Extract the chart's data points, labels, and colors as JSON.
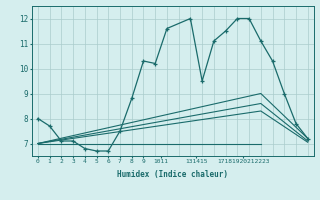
{
  "xlabel": "Humidex (Indice chaleur)",
  "bg_color": "#d5eeee",
  "grid_color": "#aacccc",
  "line_color": "#1a6b6b",
  "xlim": [
    -0.5,
    23.5
  ],
  "ylim": [
    6.5,
    12.5
  ],
  "y_ticks": [
    7,
    8,
    9,
    10,
    11,
    12
  ],
  "main_x": [
    0,
    1,
    2,
    3,
    4,
    5,
    6,
    7,
    8,
    9,
    10,
    11,
    13,
    14,
    15,
    16,
    17,
    18,
    19,
    20,
    21,
    22,
    23
  ],
  "main_y": [
    8.0,
    7.7,
    7.1,
    7.1,
    6.8,
    6.7,
    6.7,
    7.5,
    8.8,
    10.3,
    10.2,
    11.6,
    12.0,
    9.5,
    11.1,
    11.5,
    12.0,
    12.0,
    11.1,
    10.3,
    9.0,
    7.8,
    7.2
  ],
  "line2_x": [
    0,
    19,
    23
  ],
  "line2_y": [
    7.0,
    9.0,
    7.2
  ],
  "line3_x": [
    0,
    19,
    23
  ],
  "line3_y": [
    7.0,
    8.6,
    7.1
  ],
  "line4_x": [
    0,
    19
  ],
  "line4_y": [
    7.0,
    7.0
  ],
  "line5_x": [
    0,
    19,
    23
  ],
  "line5_y": [
    7.0,
    8.3,
    7.05
  ],
  "x_tick_positions": [
    0,
    1,
    2,
    3,
    4,
    5,
    6,
    7,
    8,
    9,
    10.5,
    13.5,
    17.5
  ],
  "x_tick_labels": [
    "0",
    "1",
    "2",
    "3",
    "4",
    "5",
    "6",
    "7",
    "8",
    "9",
    "1011",
    "131415",
    "17181920212223"
  ]
}
